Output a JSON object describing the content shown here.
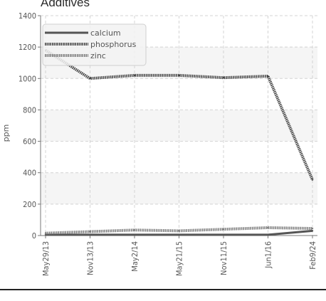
{
  "chart_data": {
    "type": "line",
    "title": "Additives",
    "ylabel": "ppm",
    "xlabel": "",
    "ylim": [
      0,
      1400
    ],
    "yticks": [
      0,
      200,
      400,
      600,
      800,
      1000,
      1200,
      1400
    ],
    "categories": [
      "May29/13",
      "Nov13/13",
      "May2/14",
      "May21/15",
      "Nov11/15",
      "Jun1/16",
      "Feb9/24"
    ],
    "grid": true,
    "legend_position": "top-left",
    "series": [
      {
        "name": "calcium",
        "color": "#555555",
        "style": "solid",
        "values": [
          5,
          5,
          5,
          5,
          5,
          5,
          30
        ]
      },
      {
        "name": "phosphorus",
        "color": "#444444",
        "style": "dotted",
        "values": [
          1180,
          1000,
          1020,
          1020,
          1005,
          1015,
          355
        ]
      },
      {
        "name": "zinc",
        "color": "#7a7a7a",
        "style": "dotted",
        "values": [
          15,
          25,
          35,
          30,
          40,
          50,
          45
        ]
      }
    ]
  }
}
